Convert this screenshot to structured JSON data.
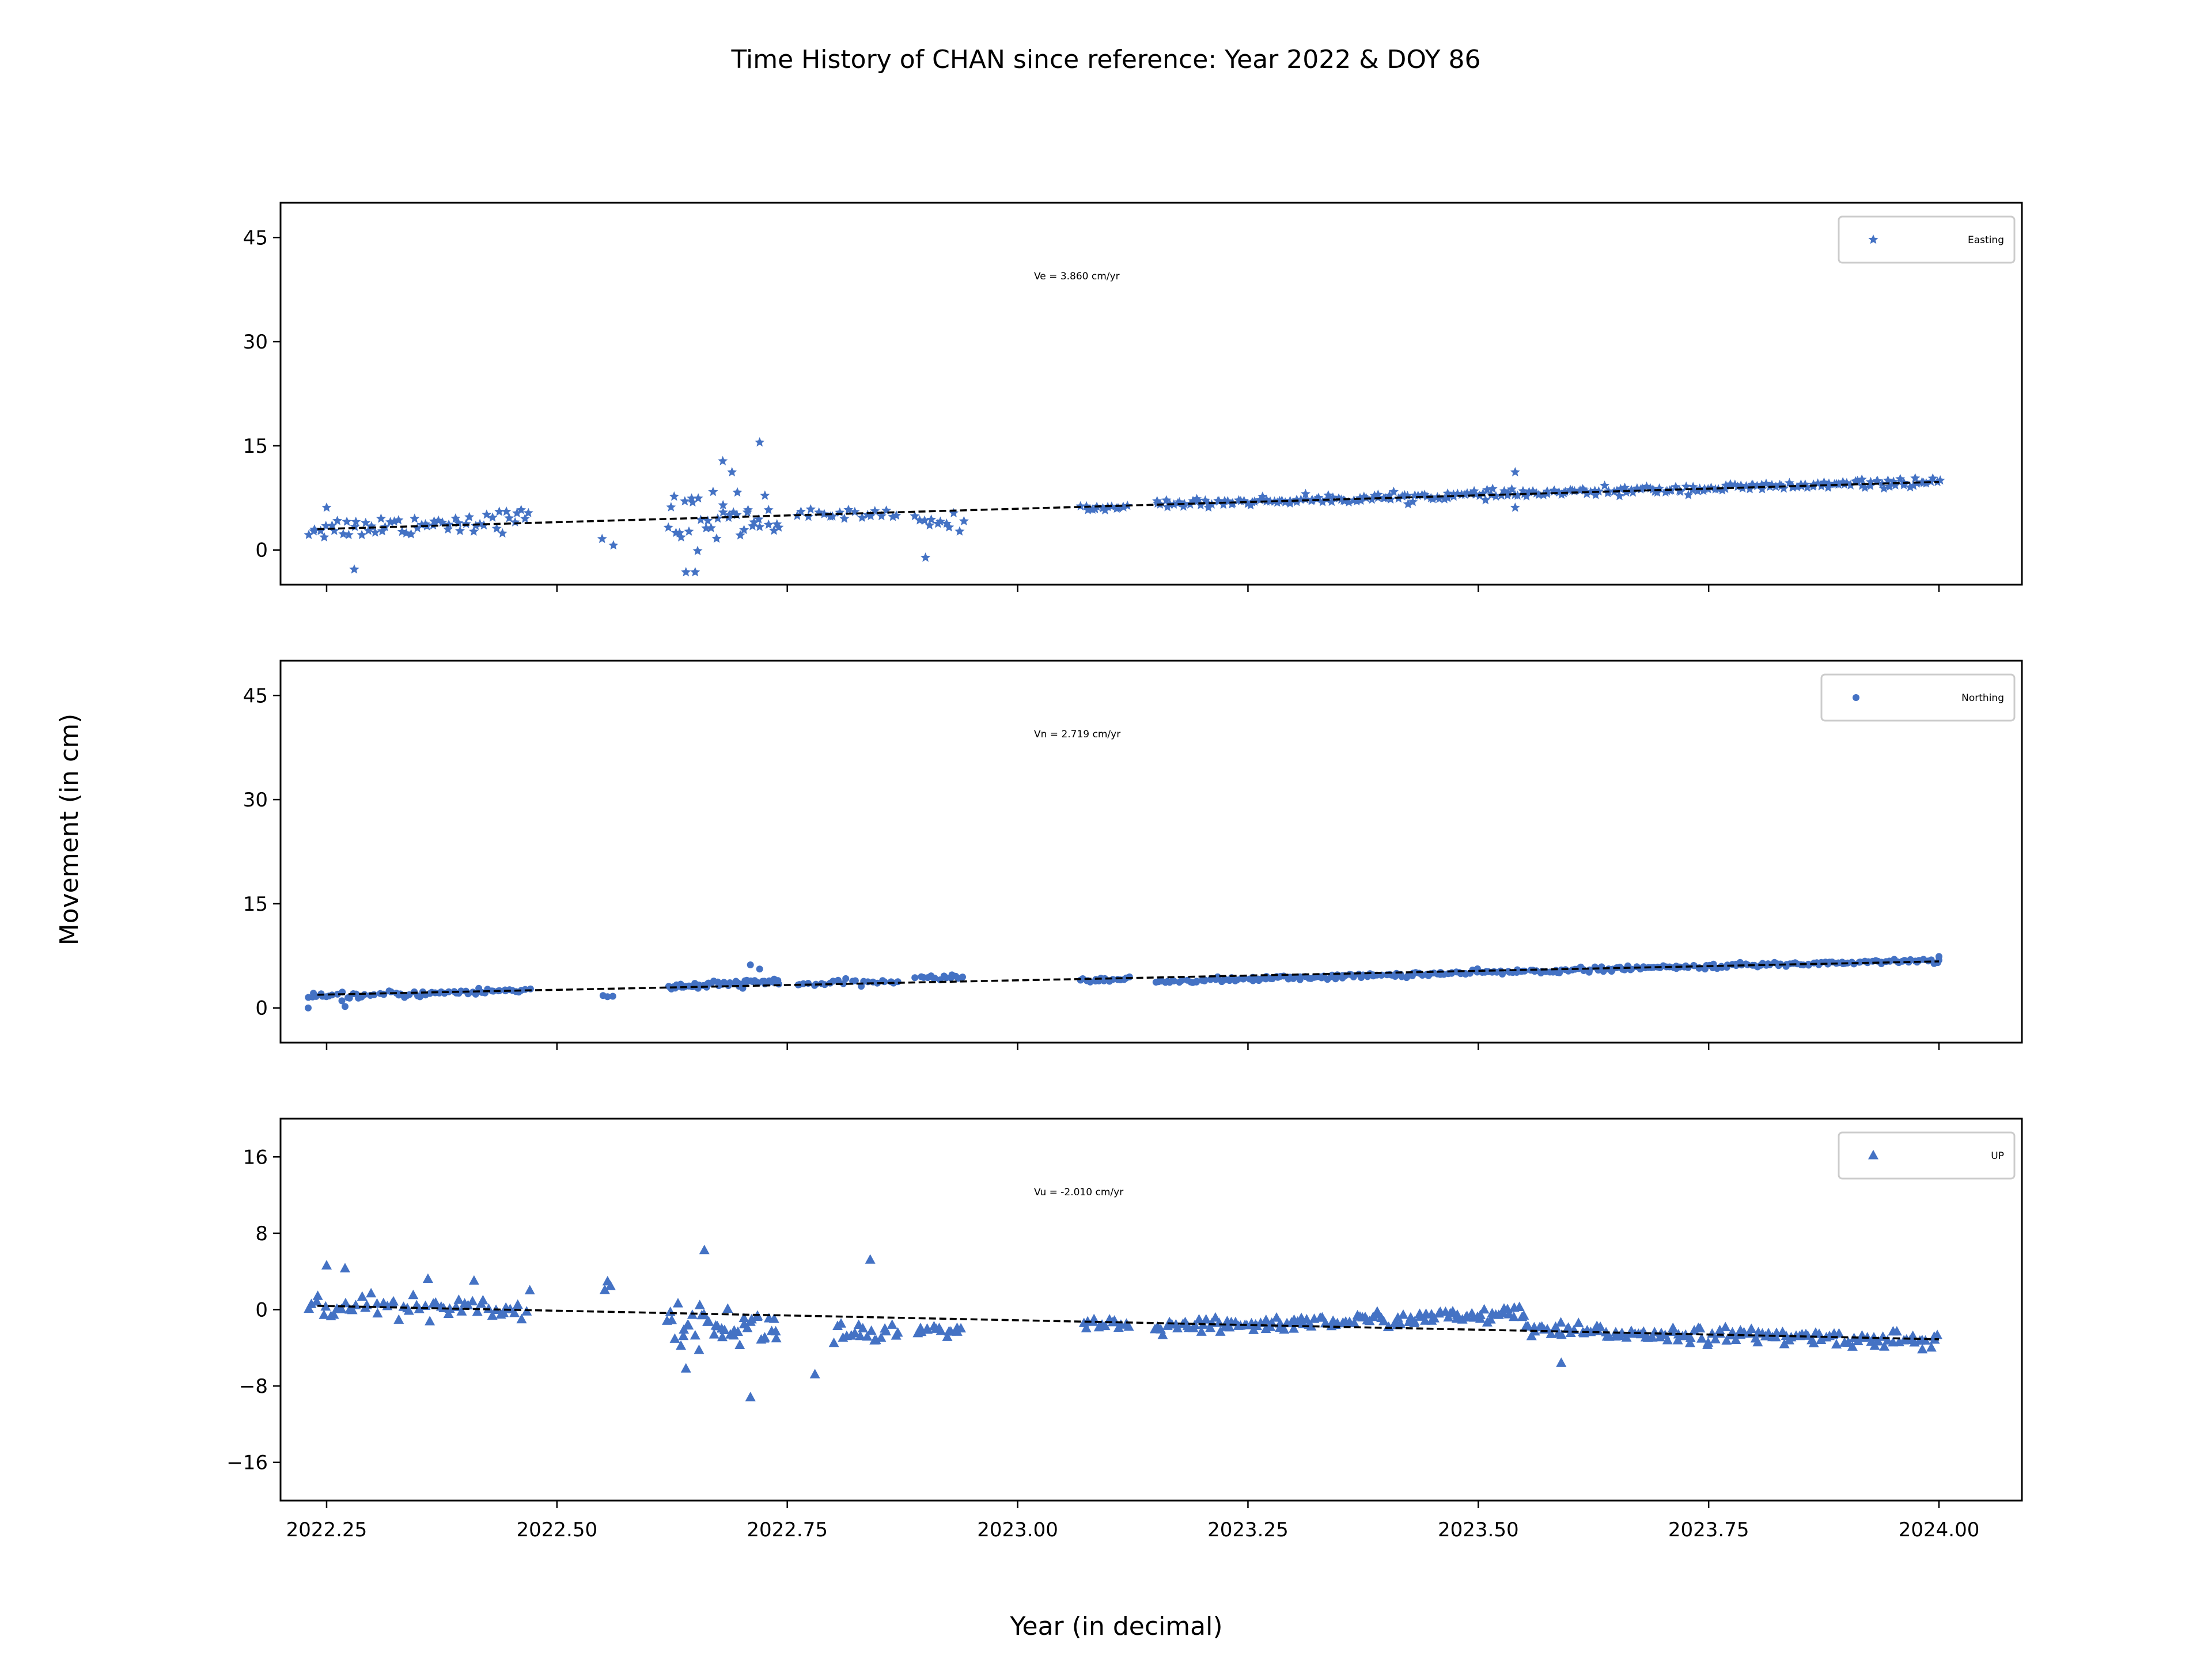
{
  "figure": {
    "title": "Time History of CHAN since reference: Year 2022 & DOY 86",
    "xlabel": "Year (in decimal)",
    "ylabel": "Movement (in cm)",
    "marker_color": "#4472c4",
    "fit_line_color": "#000000"
  },
  "chart_data": [
    {
      "type": "scatter",
      "series": [
        {
          "name": "Easting",
          "marker": "star"
        }
      ],
      "annotation": "Ve =  3.860 cm/yr",
      "xlim": [
        2022.2,
        2024.09
      ],
      "ylim": [
        -5,
        50
      ],
      "yticks": [
        0,
        15,
        30,
        45
      ],
      "ytick_labels": [
        "0",
        "15",
        "30",
        "45"
      ],
      "legend_position": "top-right",
      "fit": {
        "slope": 3.86,
        "x": [
          2022.24,
          2024.0
        ],
        "y": [
          3.0,
          9.8
        ]
      },
      "segments": [
        {
          "x": [
            2022.23,
            2022.47
          ],
          "y0": 3.0,
          "y1": 4.5,
          "noise": 1.6,
          "n": 60
        },
        {
          "x": [
            2022.55,
            2022.56
          ],
          "y0": 2.0,
          "y1": 3.0,
          "noise": 3.0,
          "n": 2
        },
        {
          "x": [
            2022.62,
            2022.74
          ],
          "y0": 4.0,
          "y1": 5.5,
          "noise": 4.0,
          "n": 40
        },
        {
          "x": [
            2022.76,
            2022.87
          ],
          "y0": 5.0,
          "y1": 5.0,
          "noise": 0.8,
          "n": 20
        },
        {
          "x": [
            2022.89,
            2022.94
          ],
          "y0": 4.0,
          "y1": 4.0,
          "noise": 1.2,
          "n": 12
        },
        {
          "x": [
            2023.07,
            2023.12
          ],
          "y0": 6.0,
          "y1": 6.2,
          "noise": 0.4,
          "n": 15
        },
        {
          "x": [
            2023.15,
            2024.0
          ],
          "y0": 6.6,
          "y1": 9.8,
          "noise": 0.6,
          "n": 260
        }
      ],
      "outliers": [
        {
          "x": 2022.72,
          "y": 15.5
        },
        {
          "x": 2022.68,
          "y": 12.8
        },
        {
          "x": 2022.69,
          "y": 11.2
        },
        {
          "x": 2022.64,
          "y": -3.2
        },
        {
          "x": 2022.65,
          "y": -3.2
        },
        {
          "x": 2022.28,
          "y": -2.8
        },
        {
          "x": 2022.9,
          "y": -1.1
        },
        {
          "x": 2022.25,
          "y": 6.1
        },
        {
          "x": 2023.54,
          "y": 11.2
        },
        {
          "x": 2023.54,
          "y": 6.1
        }
      ]
    },
    {
      "type": "scatter",
      "series": [
        {
          "name": "Northing",
          "marker": "circle"
        }
      ],
      "annotation": "Vn =  2.719 cm/yr",
      "xlim": [
        2022.2,
        2024.09
      ],
      "ylim": [
        -5,
        50
      ],
      "yticks": [
        0,
        15,
        30,
        45
      ],
      "ytick_labels": [
        "0",
        "15",
        "30",
        "45"
      ],
      "legend_position": "top-right",
      "fit": {
        "slope": 2.719,
        "x": [
          2022.24,
          2024.0
        ],
        "y": [
          1.9,
          6.7
        ]
      },
      "segments": [
        {
          "x": [
            2022.23,
            2022.47
          ],
          "y0": 1.5,
          "y1": 2.6,
          "noise": 0.5,
          "n": 70
        },
        {
          "x": [
            2022.55,
            2022.56
          ],
          "y0": 1.8,
          "y1": 1.8,
          "noise": 0.4,
          "n": 3
        },
        {
          "x": [
            2022.62,
            2022.74
          ],
          "y0": 3.0,
          "y1": 3.8,
          "noise": 0.5,
          "n": 60
        },
        {
          "x": [
            2022.76,
            2022.87
          ],
          "y0": 3.4,
          "y1": 3.8,
          "noise": 0.4,
          "n": 25
        },
        {
          "x": [
            2022.89,
            2022.94
          ],
          "y0": 4.4,
          "y1": 4.4,
          "noise": 0.3,
          "n": 15
        },
        {
          "x": [
            2023.07,
            2023.12
          ],
          "y0": 4.0,
          "y1": 4.1,
          "noise": 0.3,
          "n": 20
        },
        {
          "x": [
            2023.15,
            2024.0
          ],
          "y0": 3.8,
          "y1": 6.9,
          "noise": 0.35,
          "n": 280
        }
      ],
      "outliers": [
        {
          "x": 2022.71,
          "y": 6.2
        },
        {
          "x": 2022.72,
          "y": 5.6
        },
        {
          "x": 2022.23,
          "y": 0.0
        },
        {
          "x": 2022.27,
          "y": 0.2
        },
        {
          "x": 2024.0,
          "y": 7.4
        }
      ]
    },
    {
      "type": "scatter",
      "series": [
        {
          "name": "UP",
          "marker": "triangle"
        }
      ],
      "annotation": "Vu = -2.010 cm/yr",
      "xlim": [
        2022.2,
        2024.09
      ],
      "ylim": [
        -20,
        20
      ],
      "yticks": [
        -16,
        -8,
        0,
        8,
        16
      ],
      "ytick_labels": [
        "−16",
        "−8",
        "0",
        "8",
        "16"
      ],
      "legend_position": "top-right",
      "fit": {
        "slope": -2.01,
        "x": [
          2022.24,
          2024.0
        ],
        "y": [
          0.4,
          -3.1
        ]
      },
      "segments": [
        {
          "x": [
            2022.23,
            2022.47
          ],
          "y0": 0.3,
          "y1": 0.2,
          "noise": 1.5,
          "n": 60
        },
        {
          "x": [
            2022.55,
            2022.56
          ],
          "y0": 2.5,
          "y1": 2.5,
          "noise": 0.6,
          "n": 3
        },
        {
          "x": [
            2022.62,
            2022.74
          ],
          "y0": -1.5,
          "y1": -2.0,
          "noise": 2.0,
          "n": 45
        },
        {
          "x": [
            2022.8,
            2022.87
          ],
          "y0": -2.5,
          "y1": -2.5,
          "noise": 1.5,
          "n": 20
        },
        {
          "x": [
            2022.89,
            2022.94
          ],
          "y0": -2.5,
          "y1": -2.5,
          "noise": 0.8,
          "n": 15
        },
        {
          "x": [
            2023.07,
            2023.12
          ],
          "y0": -1.5,
          "y1": -1.8,
          "noise": 0.7,
          "n": 15
        },
        {
          "x": [
            2023.15,
            2023.55
          ],
          "y0": -2.0,
          "y1": -0.5,
          "noise": 0.8,
          "n": 130
        },
        {
          "x": [
            2023.55,
            2024.0
          ],
          "y0": -2.2,
          "y1": -3.3,
          "noise": 0.8,
          "n": 140
        }
      ],
      "outliers": [
        {
          "x": 2022.66,
          "y": 6.2
        },
        {
          "x": 2022.84,
          "y": 5.2
        },
        {
          "x": 2022.25,
          "y": 4.6
        },
        {
          "x": 2022.27,
          "y": 4.3
        },
        {
          "x": 2022.71,
          "y": -9.2
        },
        {
          "x": 2022.64,
          "y": -6.2
        },
        {
          "x": 2022.78,
          "y": -6.8
        },
        {
          "x": 2023.59,
          "y": -5.6
        },
        {
          "x": 2022.41,
          "y": 3.0
        },
        {
          "x": 2022.36,
          "y": 3.2
        }
      ]
    }
  ],
  "x_axis": {
    "ticks": [
      2022.25,
      2022.5,
      2022.75,
      2023.0,
      2023.25,
      2023.5,
      2023.75,
      2024.0
    ],
    "tick_labels": [
      "2022.25",
      "2022.50",
      "2022.75",
      "2023.00",
      "2023.25",
      "2023.50",
      "2023.75",
      "2024.00"
    ]
  }
}
